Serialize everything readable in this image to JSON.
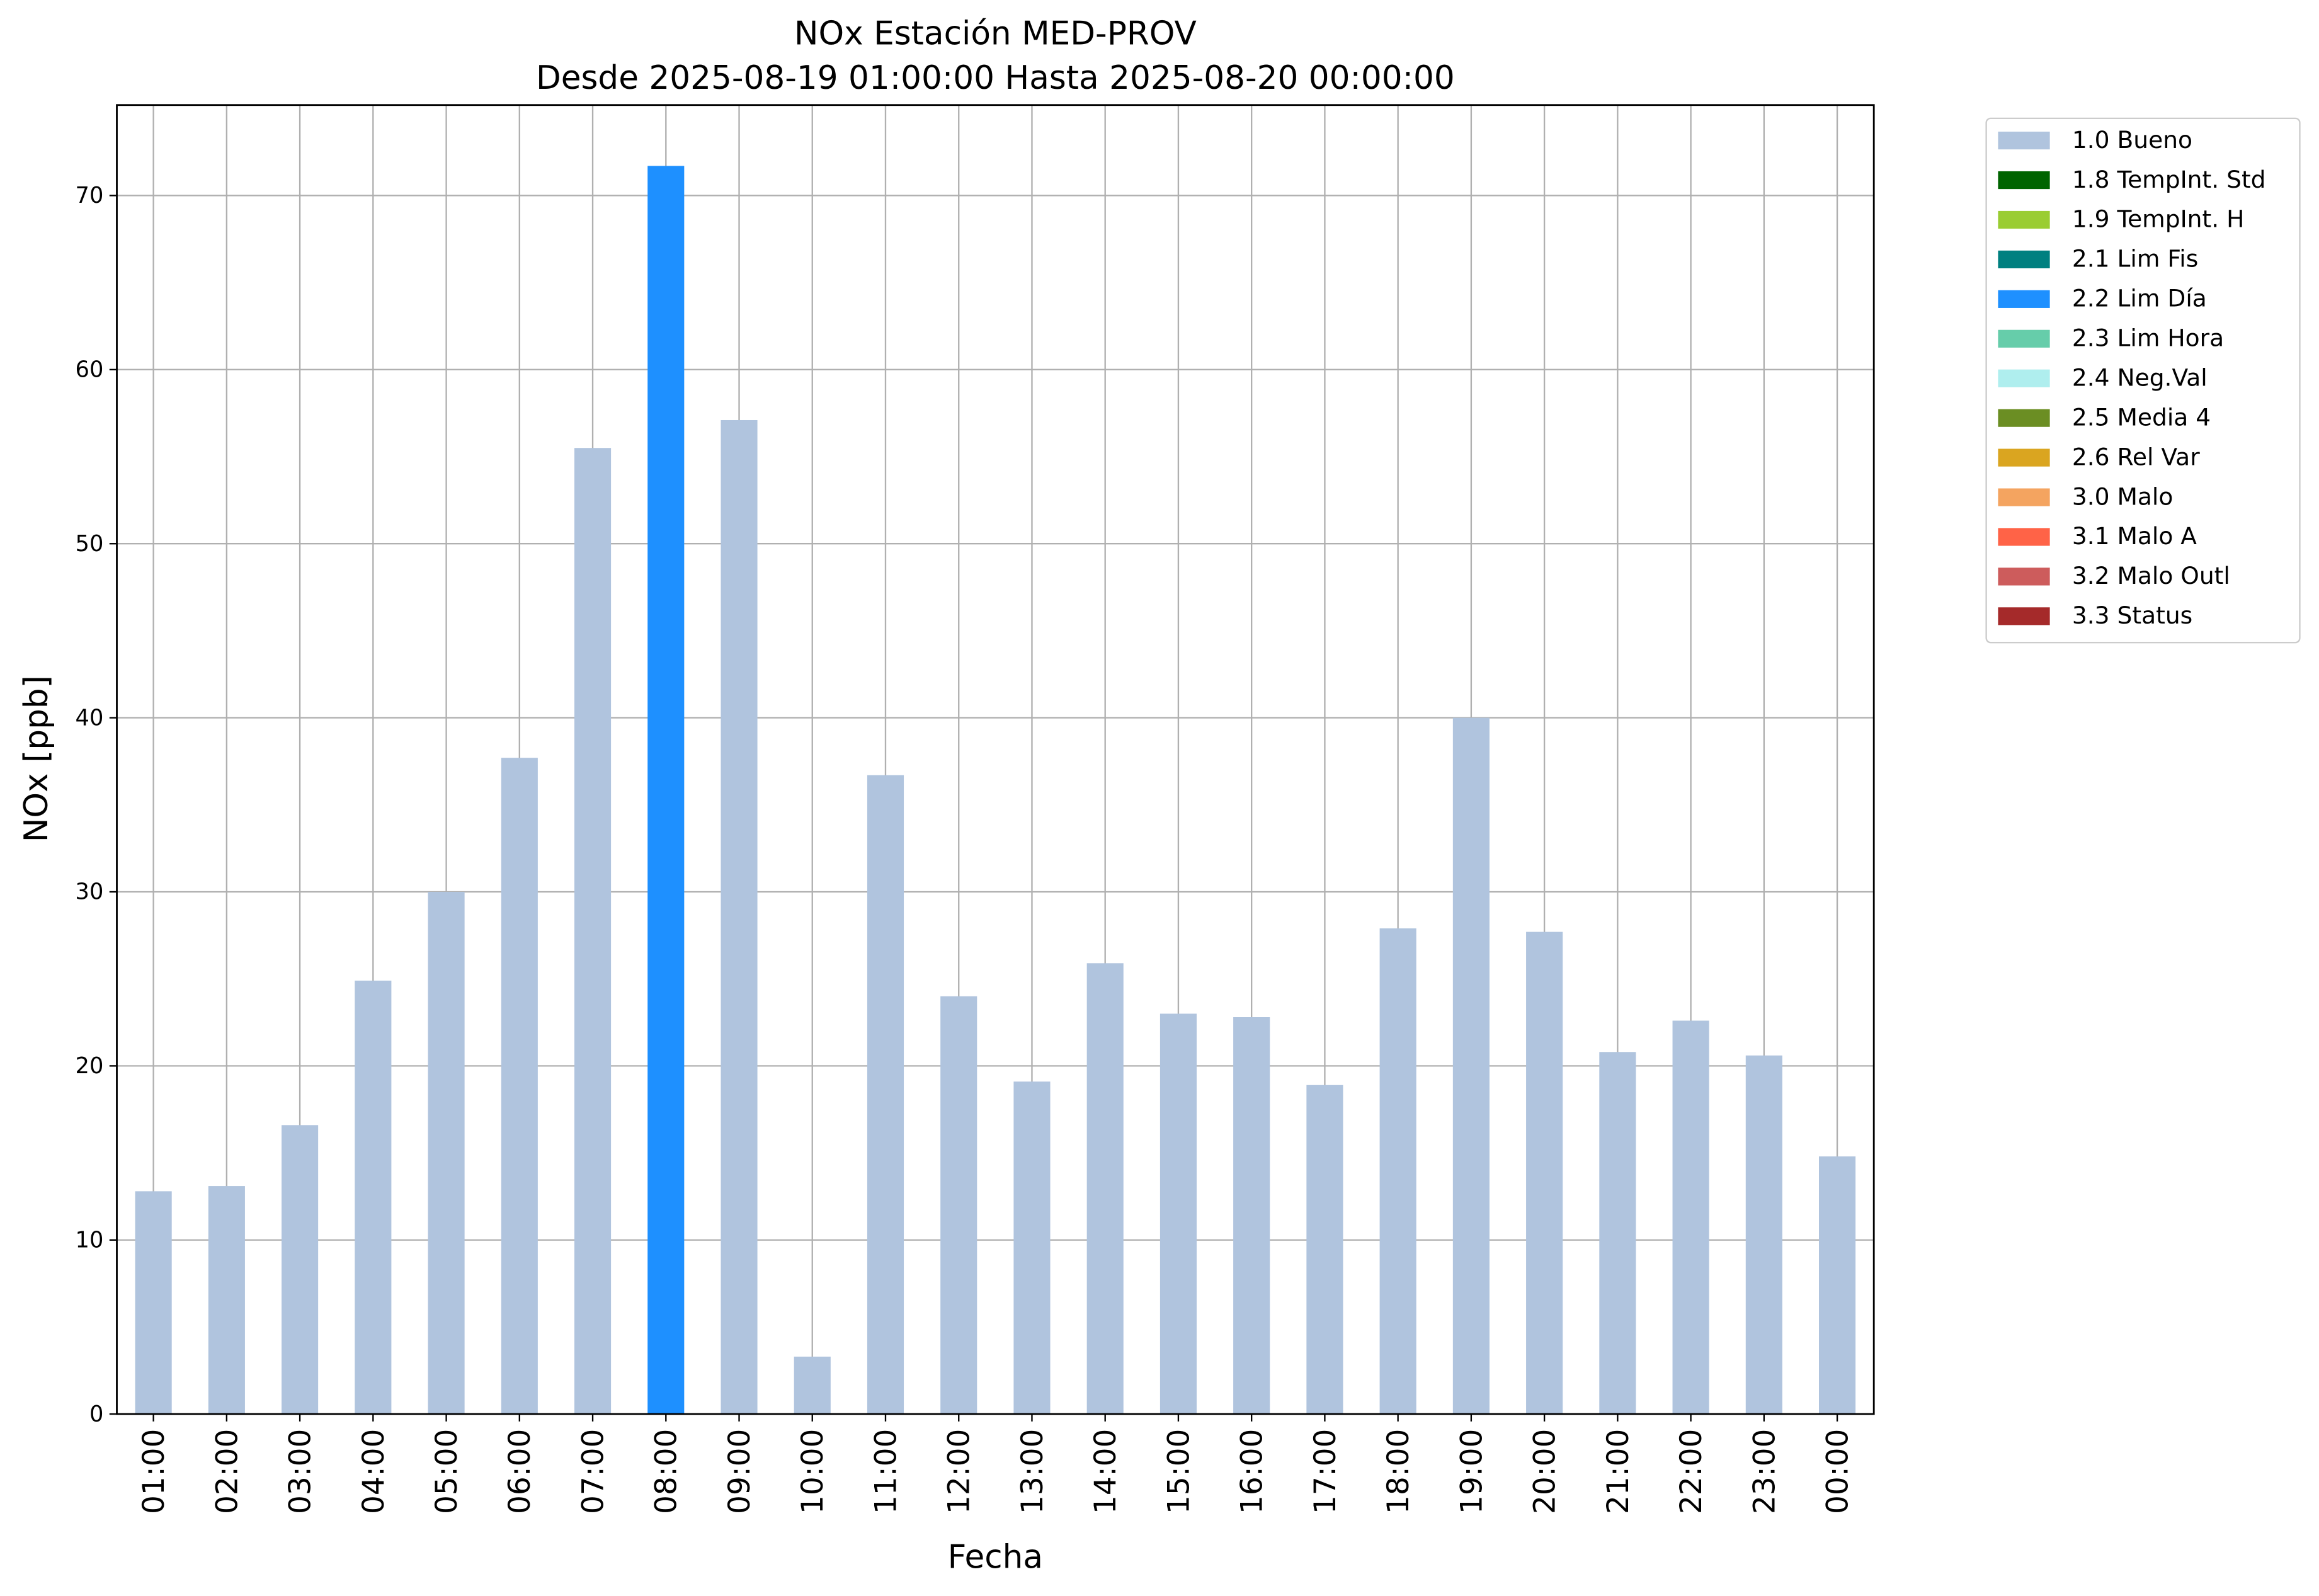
{
  "chart_data": {
    "type": "stacked_bar",
    "title": "NOx Estación MED-PROV",
    "subtitle": "Desde 2025-08-19 01:00:00 Hasta 2025-08-20 00:00:00",
    "x_label": "Fecha",
    "y_label": "NOx [ppb]",
    "categories": [
      "01:00",
      "02:00",
      "03:00",
      "04:00",
      "05:00",
      "06:00",
      "07:00",
      "08:00",
      "09:00",
      "10:00",
      "11:00",
      "12:00",
      "13:00",
      "14:00",
      "15:00",
      "16:00",
      "17:00",
      "18:00",
      "19:00",
      "20:00",
      "21:00",
      "22:00",
      "23:00",
      "00:00"
    ],
    "series": [
      {
        "name": "1.0 Bueno",
        "color": "#b0c4de",
        "values": [
          12.8,
          13.1,
          16.6,
          24.9,
          30.0,
          37.7,
          55.5,
          null,
          57.1,
          3.3,
          36.7,
          24.0,
          19.1,
          25.9,
          23.0,
          22.8,
          18.9,
          27.9,
          40.0,
          27.7,
          20.8,
          22.6,
          20.6,
          14.8
        ]
      },
      {
        "name": "1.8 TempInt. Std",
        "color": "#006400",
        "values": [
          null,
          null,
          null,
          null,
          null,
          null,
          null,
          null,
          null,
          null,
          null,
          null,
          null,
          null,
          null,
          null,
          null,
          null,
          null,
          null,
          null,
          null,
          null,
          null
        ]
      },
      {
        "name": "1.9 TempInt. H",
        "color": "#9acd32",
        "values": [
          null,
          null,
          null,
          null,
          null,
          null,
          null,
          null,
          null,
          null,
          null,
          null,
          null,
          null,
          null,
          null,
          null,
          null,
          null,
          null,
          null,
          null,
          null,
          null
        ]
      },
      {
        "name": "2.1 Lim Fis",
        "color": "#008080",
        "values": [
          null,
          null,
          null,
          null,
          null,
          null,
          null,
          null,
          null,
          null,
          null,
          null,
          null,
          null,
          null,
          null,
          null,
          null,
          null,
          null,
          null,
          null,
          null,
          null
        ]
      },
      {
        "name": "2.2 Lim Día",
        "color": "#1e90ff",
        "values": [
          null,
          null,
          null,
          null,
          null,
          null,
          null,
          71.7,
          null,
          null,
          null,
          null,
          null,
          null,
          null,
          null,
          null,
          null,
          null,
          null,
          null,
          null,
          null,
          null
        ]
      },
      {
        "name": "2.3 Lim Hora",
        "color": "#66cdaa",
        "values": [
          null,
          null,
          null,
          null,
          null,
          null,
          null,
          null,
          null,
          null,
          null,
          null,
          null,
          null,
          null,
          null,
          null,
          null,
          null,
          null,
          null,
          null,
          null,
          null
        ]
      },
      {
        "name": "2.4 Neg.Val",
        "color": "#afeeee",
        "values": [
          null,
          null,
          null,
          null,
          null,
          null,
          null,
          null,
          null,
          null,
          null,
          null,
          null,
          null,
          null,
          null,
          null,
          null,
          null,
          null,
          null,
          null,
          null,
          null
        ]
      },
      {
        "name": "2.5 Media 4",
        "color": "#6b8e23",
        "values": [
          null,
          null,
          null,
          null,
          null,
          null,
          null,
          null,
          null,
          null,
          null,
          null,
          null,
          null,
          null,
          null,
          null,
          null,
          null,
          null,
          null,
          null,
          null,
          null
        ]
      },
      {
        "name": "2.6 Rel Var",
        "color": "#daa520",
        "values": [
          null,
          null,
          null,
          null,
          null,
          null,
          null,
          null,
          null,
          null,
          null,
          null,
          null,
          null,
          null,
          null,
          null,
          null,
          null,
          null,
          null,
          null,
          null,
          null
        ]
      },
      {
        "name": "3.0 Malo",
        "color": "#f4a460",
        "values": [
          null,
          null,
          null,
          null,
          null,
          null,
          null,
          null,
          null,
          null,
          null,
          null,
          null,
          null,
          null,
          null,
          null,
          null,
          null,
          null,
          null,
          null,
          null,
          null
        ]
      },
      {
        "name": "3.1 Malo A",
        "color": "#ff6347",
        "values": [
          null,
          null,
          null,
          null,
          null,
          null,
          null,
          null,
          null,
          null,
          null,
          null,
          null,
          null,
          null,
          null,
          null,
          null,
          null,
          null,
          null,
          null,
          null,
          null
        ]
      },
      {
        "name": "3.2 Malo Outl",
        "color": "#cd5c5c",
        "values": [
          null,
          null,
          null,
          null,
          null,
          null,
          null,
          null,
          null,
          null,
          null,
          null,
          null,
          null,
          null,
          null,
          null,
          null,
          null,
          null,
          null,
          null,
          null,
          null
        ]
      },
      {
        "name": "3.3 Status",
        "color": "#a52a2a",
        "values": [
          null,
          null,
          null,
          null,
          null,
          null,
          null,
          null,
          null,
          null,
          null,
          null,
          null,
          null,
          null,
          null,
          null,
          null,
          null,
          null,
          null,
          null,
          null,
          null
        ]
      }
    ],
    "ylim": [
      0,
      75.2
    ],
    "yticks": [
      0,
      10,
      20,
      30,
      40,
      50,
      60,
      70
    ],
    "grid": true,
    "legend": "outside-upper-right"
  }
}
